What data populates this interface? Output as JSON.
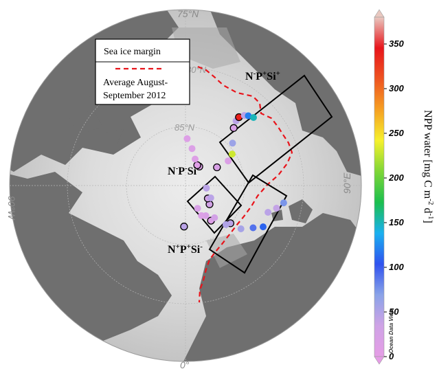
{
  "map": {
    "lat_labels": [
      "75°N",
      "80°N",
      "85°N"
    ],
    "lon_labels": {
      "left": "90°W",
      "right": "90°E",
      "bottom": "0°"
    },
    "legend": {
      "title": "Sea ice margin",
      "entry_line1": "Average August-",
      "entry_line2": "September 2012",
      "line_color": "#e8141b"
    },
    "regions": [
      {
        "id": "n-p-si-plus",
        "label_parts": [
          "N",
          "-",
          "P",
          "+",
          "Si",
          "+"
        ]
      },
      {
        "id": "n-p-si-minus",
        "label_parts": [
          "N",
          "-",
          "P",
          "-",
          "Si",
          "-"
        ]
      },
      {
        "id": "n-plus-p-plus-si-minus",
        "label_parts": [
          "N",
          "+",
          "P",
          "+",
          "Si",
          "-"
        ]
      }
    ],
    "stations": [
      {
        "lon": 62.0,
        "lat": 82.5,
        "value": 110
      },
      {
        "lon": 58.0,
        "lat": 83.2,
        "value": 90
      },
      {
        "lon": 52.0,
        "lat": 84.0,
        "value": 55
      },
      {
        "lon": 50.0,
        "lat": 85.0,
        "value": 45,
        "outlined": true
      },
      {
        "lon": 46.0,
        "lat": 85.2,
        "value": 50
      },
      {
        "lon": 72.0,
        "lat": 82.6,
        "value": 45
      },
      {
        "lon": 76.0,
        "lat": 82.0,
        "value": 40
      },
      {
        "lon": 80.0,
        "lat": 81.5,
        "value": 75
      },
      {
        "lon": 36.0,
        "lat": 86.3,
        "value": 12,
        "outlined": true
      },
      {
        "lon": 42.0,
        "lat": 86.3,
        "value": 30
      },
      {
        "lon": 34.0,
        "lat": 86.9,
        "value": 20
      },
      {
        "lon": 28.0,
        "lat": 87.1,
        "value": 15
      },
      {
        "lon": 28.0,
        "lat": 87.8,
        "value": 20
      },
      {
        "lon": 52.0,
        "lat": 87.4,
        "value": 30,
        "outlined": true
      },
      {
        "lon": 60.0,
        "lat": 87.8,
        "value": 30,
        "outlined": true
      },
      {
        "lon": 64.0,
        "lat": 87.6,
        "value": 45
      },
      {
        "lon": -2.0,
        "lat": 86.5,
        "value": 45,
        "outlined": true
      },
      {
        "lon": 83.0,
        "lat": 88.2,
        "value": 45
      },
      {
        "lon": 144.0,
        "lat": 88.0,
        "value": 15,
        "outlined": true
      },
      {
        "lon": 150.0,
        "lat": 88.0,
        "value": 10,
        "outlined": true
      },
      {
        "lon": 160.0,
        "lat": 87.6,
        "value": 12
      },
      {
        "lon": 170.0,
        "lat": 86.8,
        "value": 15
      },
      {
        "lon": 178.0,
        "lat": 86.0,
        "value": 12
      },
      {
        "lon": 120.0,
        "lat": 86.9,
        "value": 20,
        "outlined": true
      },
      {
        "lon": 120.0,
        "lat": 85.8,
        "value": 15
      },
      {
        "lon": 124.0,
        "lat": 85.2,
        "value": 230
      },
      {
        "lon": 132.0,
        "lat": 84.6,
        "value": 60
      },
      {
        "lon": 140.0,
        "lat": 83.6,
        "value": 20,
        "outlined": true
      },
      {
        "lon": 142.0,
        "lat": 83.0,
        "value": 45
      },
      {
        "lon": 142.0,
        "lat": 82.6,
        "value": 340,
        "outlined": true
      },
      {
        "lon": 140.0,
        "lat": 82.2,
        "value": 45
      },
      {
        "lon": 138.0,
        "lat": 82.0,
        "value": 120
      },
      {
        "lon": 135.0,
        "lat": 81.8,
        "value": 150
      }
    ]
  },
  "colorbar": {
    "title": "NPP water [mg C m-2 d-1]",
    "title_main": "NPP water [mg C m",
    "title_exp1": "-2",
    "title_mid": " d",
    "title_exp2": "-1",
    "title_end": "]",
    "min": 0,
    "max": 380,
    "ticks": [
      "0",
      "50",
      "100",
      "150",
      "200",
      "250",
      "300",
      "350"
    ],
    "tick_values": [
      0,
      50,
      100,
      150,
      200,
      250,
      300,
      350
    ],
    "watermark": "Ocean Data View",
    "stops": [
      "#e59de6",
      "#cfa3e6",
      "#8aa3e8",
      "#2f52ef",
      "#1ab0f0",
      "#1bbf4e",
      "#7ed637",
      "#f6f12d",
      "#f6a022",
      "#ee5421",
      "#e8151b",
      "#e9c8c0"
    ]
  }
}
